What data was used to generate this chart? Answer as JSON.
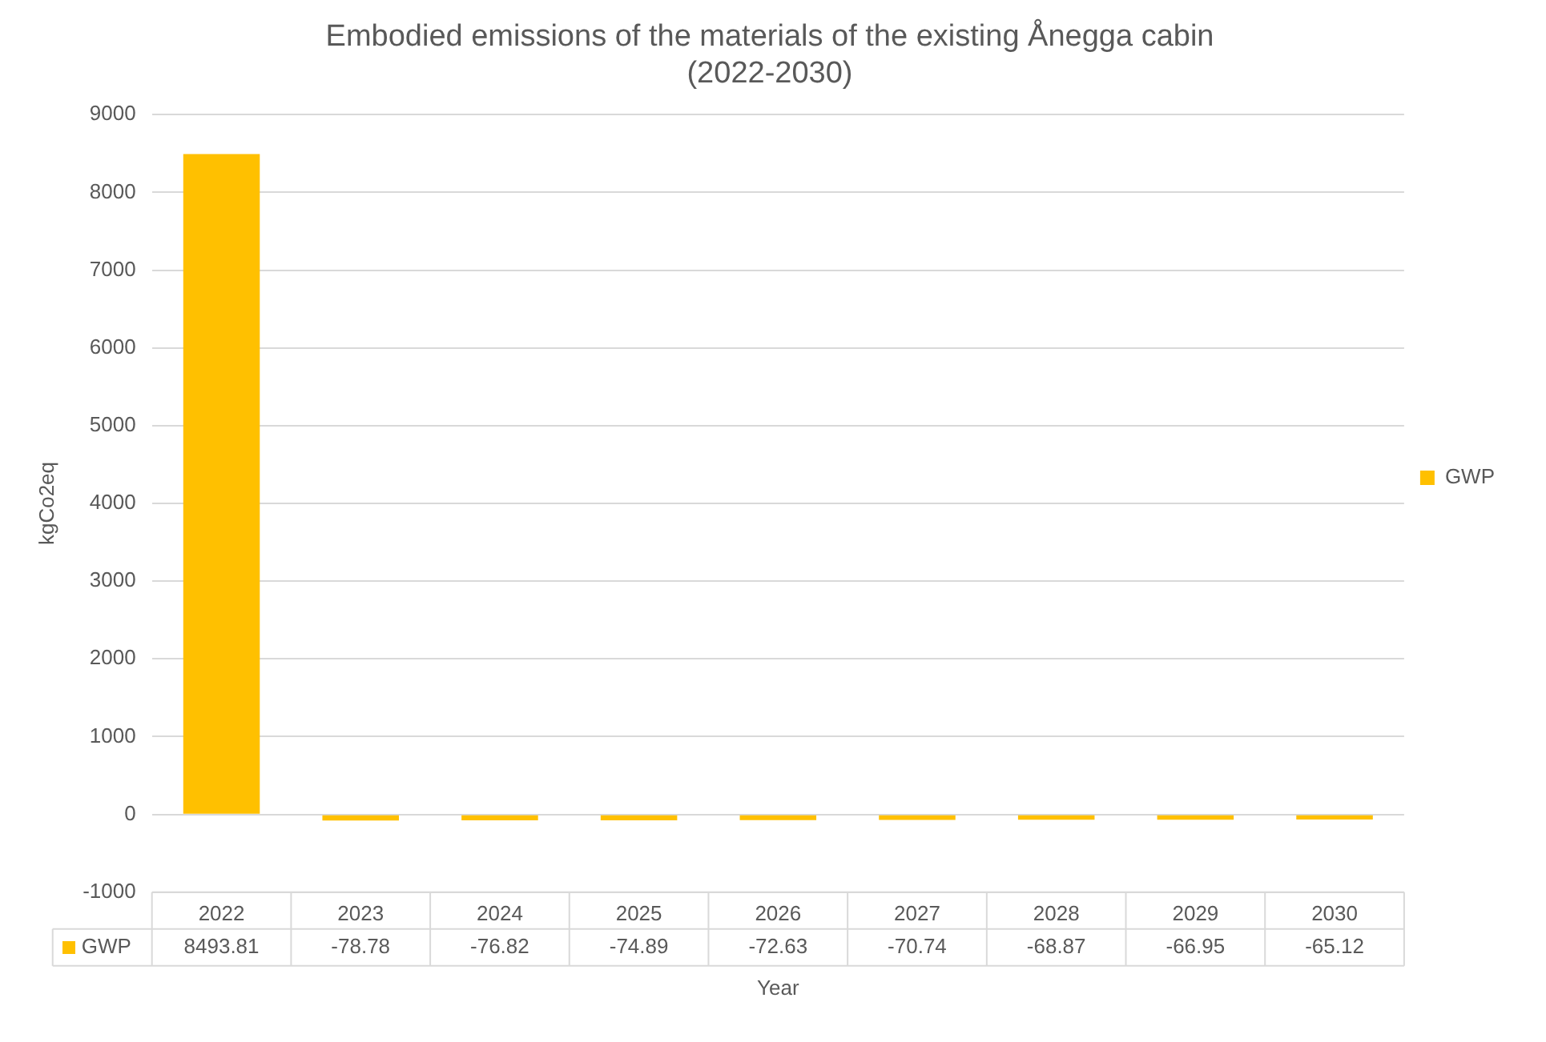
{
  "chart_data": {
    "type": "bar",
    "title": "Embodied emissions of the materials of the existing Ånegga cabin\n(2022-2030)",
    "xlabel": "Year",
    "ylabel": "kgCo2eq",
    "categories": [
      "2022",
      "2023",
      "2024",
      "2025",
      "2026",
      "2027",
      "2028",
      "2029",
      "2030"
    ],
    "series": [
      {
        "name": "GWP",
        "color": "#ffc000",
        "values": [
          8493.81,
          -78.78,
          -76.82,
          -74.89,
          -72.63,
          -70.74,
          -68.87,
          -66.95,
          -65.12
        ]
      }
    ],
    "ylim": [
      -1000,
      9000
    ],
    "yticks": [
      -1000,
      0,
      1000,
      2000,
      3000,
      4000,
      5000,
      6000,
      7000,
      8000,
      9000
    ],
    "grid": "y",
    "legend": "right",
    "data_labels": true
  }
}
